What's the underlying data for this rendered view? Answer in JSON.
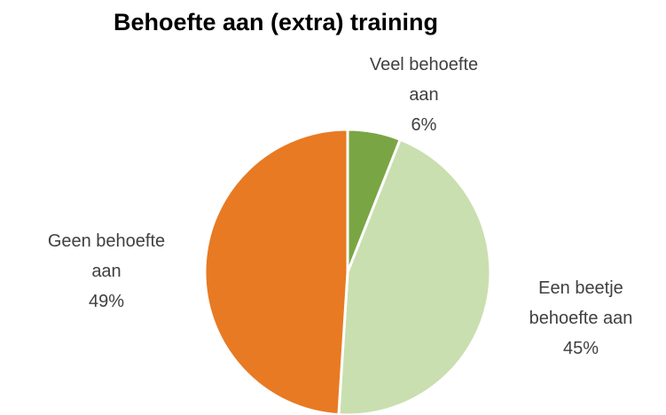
{
  "chart_data": {
    "type": "pie",
    "title": "Behoefte aan (extra) training",
    "categories": [
      "Veel behoefte aan",
      "Een beetje behoefte aan",
      "Geen behoefte aan"
    ],
    "values": [
      6,
      45,
      49
    ],
    "value_labels": [
      "6%",
      "45%",
      "49%"
    ],
    "colors": [
      "#7aa544",
      "#c9dfb0",
      "#e87a23"
    ]
  }
}
